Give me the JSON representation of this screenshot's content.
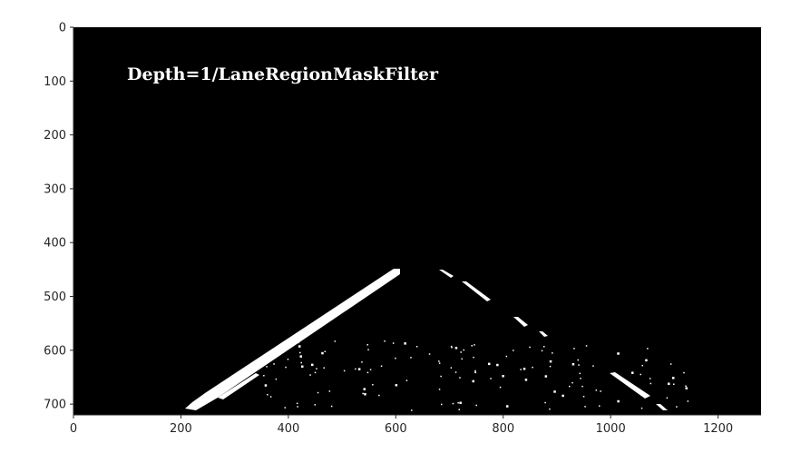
{
  "image": {
    "overlay_text": "Depth=1/LaneRegionMaskFilter",
    "width_units": 1280,
    "height_units": 720,
    "background_color": "#000000",
    "foreground_color": "#ffffff"
  },
  "axes": {
    "x_ticks": [
      {
        "value": 0,
        "label": "0"
      },
      {
        "value": 200,
        "label": "200"
      },
      {
        "value": 400,
        "label": "400"
      },
      {
        "value": 600,
        "label": "600"
      },
      {
        "value": 800,
        "label": "800"
      },
      {
        "value": 1000,
        "label": "1000"
      },
      {
        "value": 1200,
        "label": "1200"
      }
    ],
    "y_ticks": [
      {
        "value": 0,
        "label": "0"
      },
      {
        "value": 100,
        "label": "100"
      },
      {
        "value": 200,
        "label": "200"
      },
      {
        "value": 300,
        "label": "300"
      },
      {
        "value": 400,
        "label": "400"
      },
      {
        "value": 500,
        "label": "500"
      },
      {
        "value": 600,
        "label": "600"
      },
      {
        "value": 700,
        "label": "700"
      }
    ],
    "tick_color": "#262626"
  }
}
